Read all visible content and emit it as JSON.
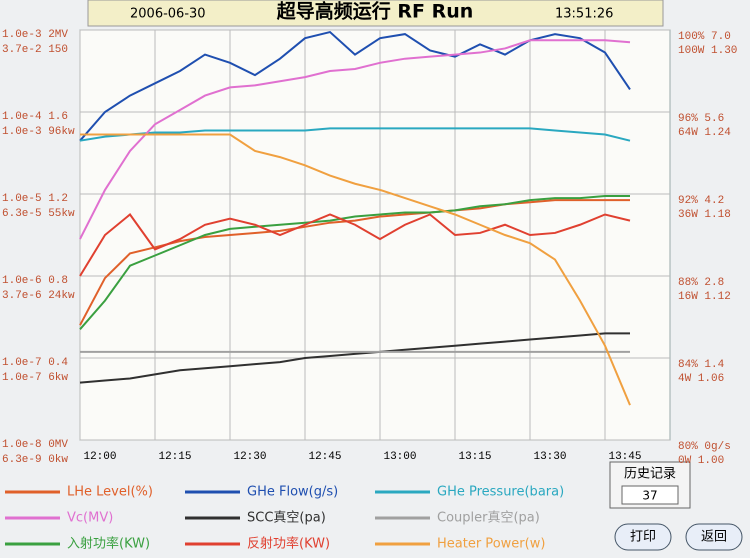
{
  "header": {
    "date": "2006-06-30",
    "title": "超导高频运行 RF Run",
    "time": "13:51:26"
  },
  "chart_data": {
    "type": "line",
    "x": [
      "12:00",
      "12:05",
      "12:10",
      "12:15",
      "12:20",
      "12:25",
      "12:30",
      "12:35",
      "12:40",
      "12:45",
      "12:50",
      "12:55",
      "13:00",
      "13:05",
      "13:10",
      "13:15",
      "13:20",
      "13:25",
      "13:30",
      "13:35",
      "13:40",
      "13:45",
      "13:50"
    ],
    "xlim": [
      "12:00",
      "13:58"
    ],
    "xticks": [
      "12:00",
      "12:15",
      "12:30",
      "12:45",
      "13:00",
      "13:15",
      "13:30",
      "13:45"
    ],
    "ylim": [
      80,
      100
    ],
    "yticks": [
      {
        "value": 100,
        "label": "100% 7.0"
      },
      {
        "value": 96,
        "label": "96% 5.6"
      },
      {
        "value": 92,
        "label": "92% 4.2"
      },
      {
        "value": 88,
        "label": "88% 2.8"
      },
      {
        "value": 84,
        "label": "84% 1.4"
      },
      {
        "value": 80,
        "label": "80% 0g/s"
      }
    ],
    "right_sublabels": [
      "100W 1.30",
      "64W 1.24",
      "36W 1.18",
      "16W 1.12",
      "4W 1.06",
      "0W 1.00"
    ],
    "left_labels": [
      [
        "1.0e-3 2MV",
        "3.7e-2 150"
      ],
      [
        "1.0e-4 1.6",
        "1.0e-3 96kw"
      ],
      [
        "1.0e-5 1.2",
        "6.3e-5 55kw"
      ],
      [
        "1.0e-6 0.8",
        "3.7e-6 24kw"
      ],
      [
        "1.0e-7 0.4",
        "1.0e-7 6kw"
      ],
      [
        "1.0e-8 0MV",
        "6.3e-9 0kw"
      ]
    ],
    "grid": true,
    "series": [
      {
        "name": "LHe Level(%)",
        "color": "#e0602a",
        "values": [
          85.6,
          87.9,
          89.1,
          89.4,
          89.7,
          89.9,
          90.0,
          90.1,
          90.2,
          90.4,
          90.6,
          90.7,
          90.9,
          91.0,
          91.1,
          91.2,
          91.3,
          91.5,
          91.6,
          91.7,
          91.7,
          91.7,
          91.7
        ]
      },
      {
        "name": "GHe Flow(g/s)",
        "color": "#1f4fb0",
        "values": [
          94.6,
          96.0,
          96.8,
          97.4,
          98.0,
          98.8,
          98.4,
          97.8,
          98.6,
          99.6,
          99.9,
          98.8,
          99.6,
          99.8,
          99.0,
          98.7,
          99.3,
          98.8,
          99.5,
          99.8,
          99.6,
          98.9,
          97.1
        ]
      },
      {
        "name": "GHe Pressure(bara)",
        "color": "#2aa8c0",
        "values": [
          94.6,
          94.8,
          94.9,
          95.0,
          95.0,
          95.1,
          95.1,
          95.1,
          95.1,
          95.1,
          95.2,
          95.2,
          95.2,
          95.2,
          95.2,
          95.2,
          95.2,
          95.2,
          95.2,
          95.1,
          95.0,
          94.9,
          94.6
        ]
      },
      {
        "name": "Vc(MV)",
        "color": "#e070d0",
        "values": [
          89.8,
          92.2,
          94.1,
          95.4,
          96.1,
          96.8,
          97.2,
          97.3,
          97.5,
          97.7,
          98.0,
          98.1,
          98.4,
          98.6,
          98.7,
          98.8,
          98.9,
          99.1,
          99.5,
          99.5,
          99.5,
          99.5,
          99.4
        ]
      },
      {
        "name": "SCC真空(pa)",
        "color": "#303030",
        "values": [
          82.8,
          82.9,
          83.0,
          83.2,
          83.4,
          83.5,
          83.6,
          83.7,
          83.8,
          84.0,
          84.1,
          84.2,
          84.3,
          84.4,
          84.5,
          84.6,
          84.7,
          84.8,
          84.9,
          85.0,
          85.1,
          85.2,
          85.2
        ]
      },
      {
        "name": "Coupler真空(pa)",
        "color": "#a0a0a0",
        "values": [
          84.3,
          84.3,
          84.3,
          84.3,
          84.3,
          84.3,
          84.3,
          84.3,
          84.3,
          84.3,
          84.3,
          84.3,
          84.3,
          84.3,
          84.3,
          84.3,
          84.3,
          84.3,
          84.3,
          84.3,
          84.3,
          84.3,
          84.3
        ]
      },
      {
        "name": "入射功率(KW)",
        "color": "#3aa040",
        "values": [
          85.4,
          86.8,
          88.5,
          89.0,
          89.5,
          90.0,
          90.3,
          90.4,
          90.5,
          90.6,
          90.7,
          90.9,
          91.0,
          91.1,
          91.1,
          91.2,
          91.4,
          91.5,
          91.7,
          91.8,
          91.8,
          91.9,
          91.9
        ]
      },
      {
        "name": "反射功率(KW)",
        "color": "#e04030",
        "values": [
          88.0,
          90.0,
          91.0,
          89.3,
          89.8,
          90.5,
          90.8,
          90.5,
          90.0,
          90.5,
          91.0,
          90.5,
          89.8,
          90.5,
          91.0,
          90.0,
          90.1,
          90.5,
          90.0,
          90.1,
          90.5,
          91.0,
          90.7
        ]
      },
      {
        "name": "Heater Power(w)",
        "color": "#f0a040",
        "values": [
          94.9,
          94.9,
          94.9,
          94.9,
          94.9,
          94.9,
          94.9,
          94.1,
          93.8,
          93.4,
          92.9,
          92.5,
          92.2,
          91.8,
          91.4,
          91.0,
          90.5,
          90.0,
          89.6,
          88.8,
          86.8,
          84.6,
          81.7
        ]
      }
    ]
  },
  "history": {
    "title": "历史记录",
    "count": "37"
  },
  "buttons": [
    "打印",
    "返回"
  ]
}
